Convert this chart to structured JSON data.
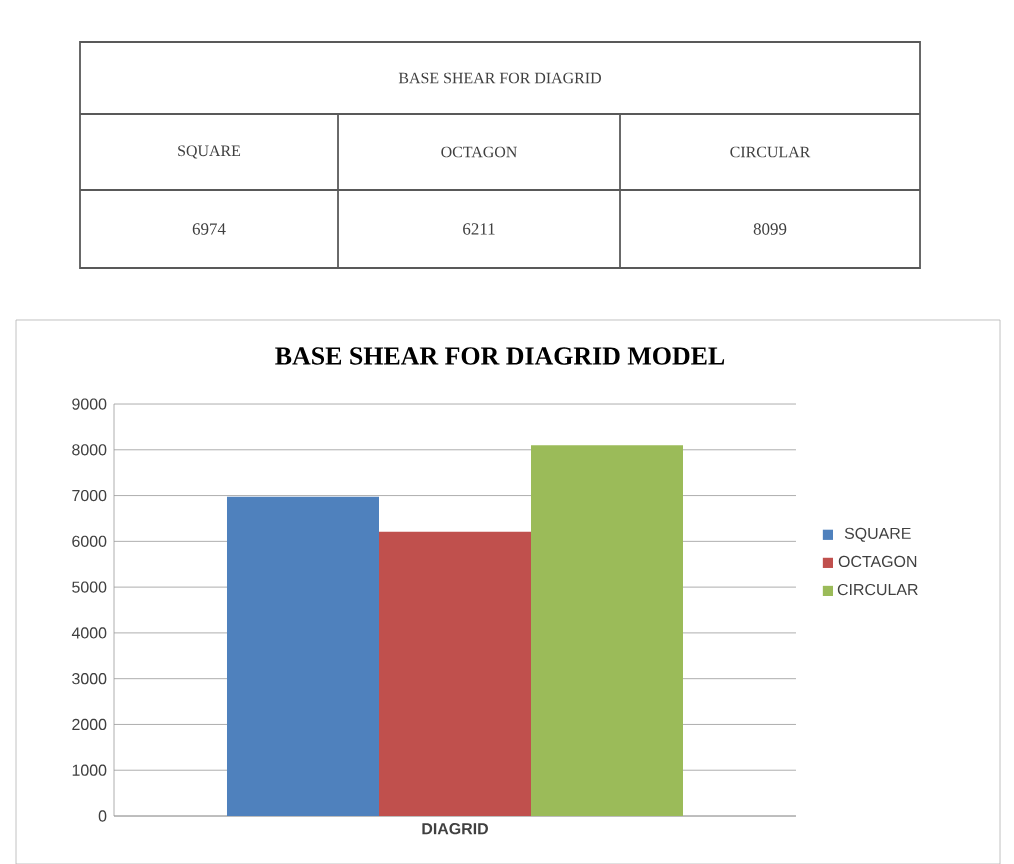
{
  "chart_data": [
    {
      "type": "other",
      "title": "BASE SHEAR FOR DIAGRID",
      "categories": [
        "SQUARE",
        "OCTAGON",
        "CIRCULAR"
      ],
      "annotations": [
        "6974",
        "6211",
        "8099"
      ]
    },
    {
      "type": "bar",
      "title": "BASE SHEAR FOR DIAGRID MODEL",
      "categories": [
        "DIAGRID"
      ],
      "series": [
        {
          "name": "SQUARE",
          "color": "#4f81bd",
          "values": [
            6974
          ]
        },
        {
          "name": "OCTAGON",
          "color": "#c0504d",
          "values": [
            6211
          ]
        },
        {
          "name": "CIRCULAR",
          "color": "#9bbb59",
          "values": [
            8099
          ]
        }
      ],
      "ylim": [
        0,
        9000
      ],
      "yticks": [
        0,
        1000,
        2000,
        3000,
        4000,
        5000,
        6000,
        7000,
        8000,
        9000
      ],
      "grid": "y",
      "legend": "right"
    }
  ]
}
